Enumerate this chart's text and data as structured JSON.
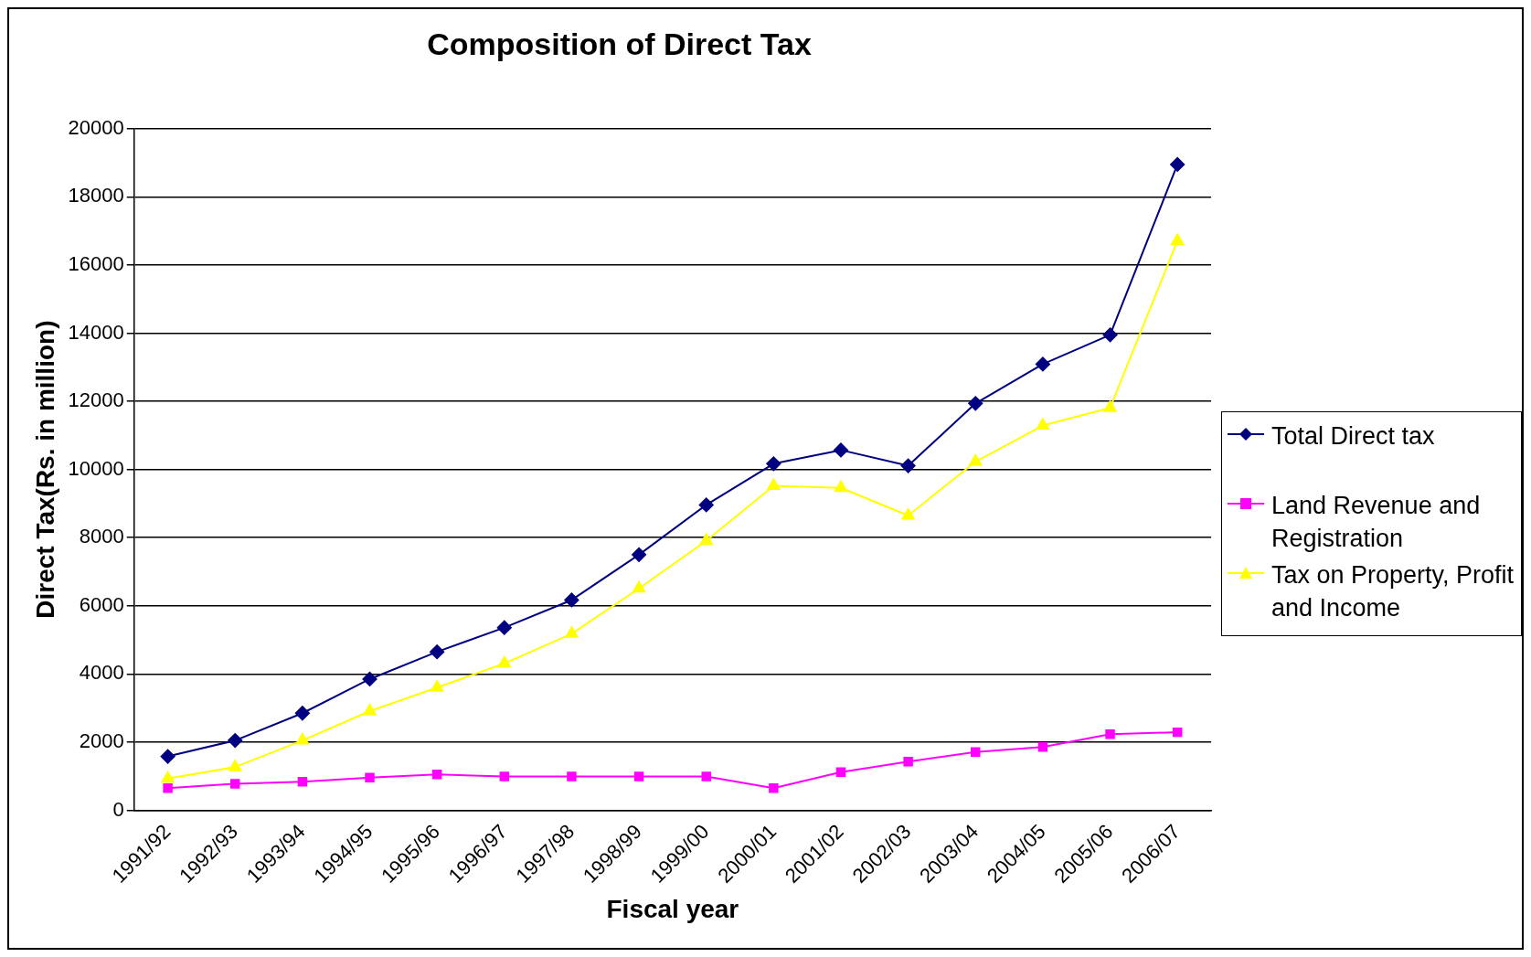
{
  "chart_data": {
    "type": "line",
    "title": "Composition of Direct Tax",
    "xlabel": "Fiscal year",
    "ylabel": "Direct Tax(Rs. in million)",
    "categories": [
      "1991/92",
      "1992/93",
      "1993/94",
      "1994/95",
      "1995/96",
      "1996/97",
      "1997/98",
      "1998/99",
      "1999/00",
      "2000/01",
      "2001/02",
      "2002/03",
      "2003/04",
      "2004/05",
      "2005/06",
      "2006/07"
    ],
    "series": [
      {
        "name": "Total Direct tax",
        "color": "#000080",
        "marker": "diamond",
        "values": [
          1580,
          2050,
          2850,
          3850,
          4650,
          5360,
          6170,
          7500,
          8960,
          10170,
          10570,
          10110,
          11940,
          13090,
          13950,
          18950
        ]
      },
      {
        "name": "Land Revenue and Registration",
        "color": "#ff00ff",
        "marker": "square",
        "values": [
          650,
          780,
          840,
          960,
          1050,
          990,
          990,
          990,
          990,
          650,
          1120,
          1430,
          1710,
          1860,
          2230,
          2290
        ]
      },
      {
        "name": "Tax on Property, Profit and Income",
        "color": "#ffff00",
        "marker": "triangle",
        "values": [
          930,
          1270,
          2050,
          2910,
          3600,
          4310,
          5180,
          6510,
          7910,
          9520,
          9460,
          8650,
          10230,
          11290,
          11810,
          16710
        ]
      }
    ],
    "ylim": [
      0,
      20000
    ],
    "yticks": [
      0,
      2000,
      4000,
      6000,
      8000,
      10000,
      12000,
      14000,
      16000,
      18000,
      20000
    ],
    "grid": "y",
    "legend": "right",
    "line_style": "solid"
  }
}
